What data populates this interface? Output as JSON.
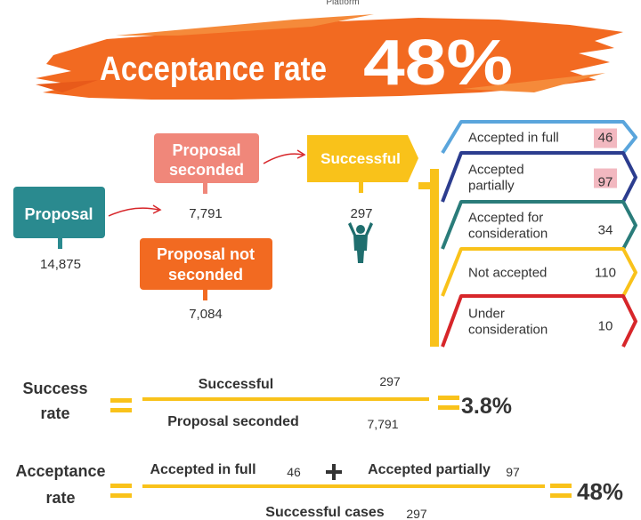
{
  "header": {
    "top_text": "Platform",
    "title": "Acceptance rate",
    "rate": "48%"
  },
  "flow": {
    "proposal": {
      "label": [
        "Proposal"
      ],
      "count": "14,875"
    },
    "seconded": {
      "label": [
        "Proposal",
        "seconded"
      ],
      "count": "7,791"
    },
    "not_seconded": {
      "label": [
        "Proposal not",
        "seconded"
      ],
      "count": "7,084"
    },
    "successful": {
      "label": [
        "Successful"
      ],
      "count": "297"
    }
  },
  "outcomes": [
    {
      "label": [
        "Accepted in full"
      ],
      "count": "46"
    },
    {
      "label": [
        "Accepted",
        "partially"
      ],
      "count": "97"
    },
    {
      "label": [
        "Accepted  for",
        "consideration"
      ],
      "count": "34"
    },
    {
      "label": [
        "Not accepted"
      ],
      "count": "110"
    },
    {
      "label": [
        "Under",
        "consideration"
      ],
      "count": "10"
    }
  ],
  "formulas": {
    "success_rate": {
      "label": [
        "Success",
        "rate"
      ],
      "numerator_label": "Successful",
      "numerator": "297",
      "denominator_label": "Proposal seconded",
      "denominator": "7,791",
      "result": "3.8%"
    },
    "acceptance_rate": {
      "label": [
        "Acceptance",
        "rate"
      ],
      "term1_label": "Accepted in full",
      "term1": "46",
      "term2_label": "Accepted partially",
      "term2": "97",
      "denominator_label": "Successful cases",
      "denominator": "297",
      "result": "48%"
    }
  }
}
